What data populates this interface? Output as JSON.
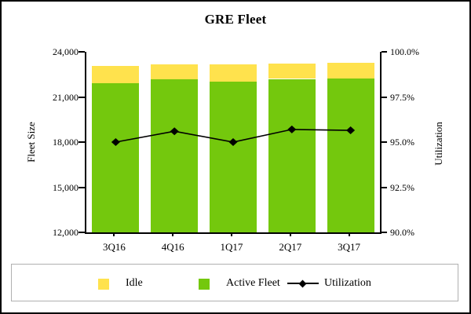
{
  "chart_data": {
    "type": "bar",
    "variant": "stacked-column-with-line",
    "title": "GRE Fleet",
    "categories": [
      "3Q16",
      "4Q16",
      "1Q17",
      "2Q17",
      "3Q17"
    ],
    "series": [
      {
        "name": "Active Fleet",
        "type": "bar",
        "stack_position": "bottom",
        "color": "#74C80D",
        "values": [
          21900,
          22150,
          22000,
          22200,
          22250
        ]
      },
      {
        "name": "Idle",
        "type": "bar",
        "stack_position": "top",
        "color": "#FFE24D",
        "values": [
          1150,
          1000,
          1150,
          1000,
          1000
        ]
      },
      {
        "name": "Utilization",
        "type": "line",
        "axis": "right",
        "color": "#000000",
        "marker": "diamond",
        "values": [
          95.0,
          95.6,
          95.0,
          95.7,
          95.65
        ]
      }
    ],
    "stacked_totals": [
      23050,
      23150,
      23150,
      23200,
      23250
    ],
    "left_axis": {
      "label": "Fleet Size",
      "min": 12000,
      "max": 24000,
      "step": 3000,
      "tick_values": [
        24000,
        21000,
        18000,
        15000,
        12000
      ],
      "tick_labels": [
        "24,000",
        "21,000",
        "18,000",
        "15,000",
        "12,000"
      ]
    },
    "right_axis": {
      "label": "Utilization",
      "min": 90,
      "max": 100,
      "step": 2.5,
      "tick_values": [
        100,
        97.5,
        95,
        92.5,
        90
      ],
      "tick_labels": [
        "100.0%",
        "97.5%",
        "95.0%",
        "92.5%",
        "90.0%"
      ]
    },
    "grid": "off",
    "legend": {
      "position": "bottom",
      "items": [
        {
          "label": "Idle",
          "swatch": "square",
          "color": "#FFE24D"
        },
        {
          "label": "Active Fleet",
          "swatch": "square",
          "color": "#74C80D"
        },
        {
          "label": "Utilization",
          "swatch": "line-diamond",
          "color": "#000000"
        }
      ]
    }
  }
}
